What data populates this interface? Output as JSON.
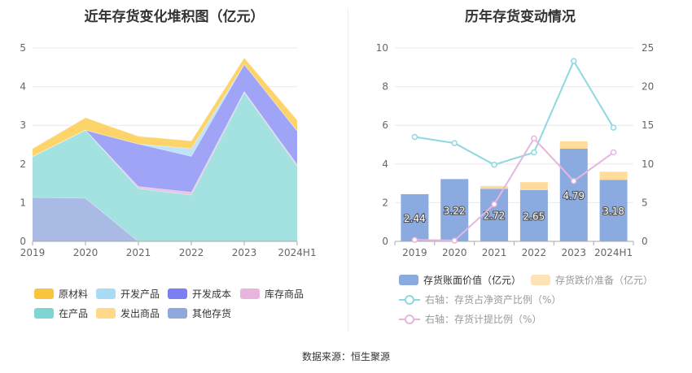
{
  "titles": {
    "left": "近年存货变化堆积图（亿元）",
    "right": "历年存货变动情况"
  },
  "source": "数据来源：恒生聚源",
  "left_legend": [
    {
      "label": "原材料",
      "color": "#f9c440"
    },
    {
      "label": "开发产品",
      "color": "#a8dcf5"
    },
    {
      "label": "开发成本",
      "color": "#7b7ff2"
    },
    {
      "label": "库存商品",
      "color": "#e9b5de"
    },
    {
      "label": "在产品",
      "color": "#7ed6d3"
    },
    {
      "label": "发出商品",
      "color": "#ffd98a"
    },
    {
      "label": "其他存货",
      "color": "#8fa9de"
    }
  ],
  "right_legend": [
    {
      "label": "存货账面价值（亿元）",
      "color": "#8aaae0",
      "kind": "box"
    },
    {
      "label": "存货跌价准备（亿元）",
      "color": "#ffe3b8",
      "kind": "box"
    },
    {
      "label": "右轴：存货占净资产比例（%）",
      "color": "#8fd8e0",
      "kind": "line"
    },
    {
      "label": "右轴：存货计提比例（%）",
      "color": "#e6b6dd",
      "kind": "line"
    }
  ],
  "chart_data": [
    {
      "type": "area",
      "title": "近年存货变化堆积图（亿元）",
      "categories": [
        "2019",
        "2020",
        "2021",
        "2022",
        "2023",
        "2024H1"
      ],
      "ylim": [
        0,
        5
      ],
      "yticks": [
        0,
        1,
        2,
        3,
        4,
        5
      ],
      "stacked": true,
      "series": [
        {
          "name": "其他存货",
          "color": "#a9bbe4",
          "values": [
            1.14,
            1.12,
            0.0,
            0.0,
            0.0,
            0.0
          ]
        },
        {
          "name": "在产品",
          "color": "#a4e2e2",
          "values": [
            1.06,
            1.76,
            1.37,
            1.2,
            3.85,
            1.95
          ]
        },
        {
          "name": "库存商品",
          "color": "#ecc2e2",
          "values": [
            0.0,
            0.0,
            0.05,
            0.07,
            0.03,
            0.04
          ]
        },
        {
          "name": "开发成本",
          "color": "#9fa4f7",
          "values": [
            0.0,
            0.0,
            1.1,
            0.93,
            0.7,
            0.87
          ]
        },
        {
          "name": "开发产品",
          "color": "#bfe4f8",
          "values": [
            0.0,
            0.0,
            0.0,
            0.2,
            0.0,
            0.0
          ]
        },
        {
          "name": "原材料",
          "color": "#fcd46a",
          "values": [
            0.2,
            0.32,
            0.2,
            0.2,
            0.17,
            0.28
          ]
        }
      ]
    },
    {
      "type": "bar",
      "title": "历年存货变动情况",
      "categories": [
        "2019",
        "2020",
        "2021",
        "2022",
        "2023",
        "2024H1"
      ],
      "ylim": [
        0,
        10
      ],
      "yticks": [
        0,
        2,
        4,
        6,
        8,
        10
      ],
      "y2lim": [
        0,
        25
      ],
      "y2ticks": [
        0,
        5,
        10,
        15,
        20,
        25
      ],
      "series": [
        {
          "name": "存货账面价值（亿元）",
          "type": "bar",
          "color": "#8aaae0",
          "values": [
            2.44,
            3.22,
            2.72,
            2.65,
            4.79,
            3.18
          ],
          "labels": [
            "2.44",
            "3.22",
            "2.72",
            "2.65",
            "4.79",
            "3.18"
          ]
        },
        {
          "name": "存货跌价准备（亿元）",
          "type": "bar",
          "stacked": true,
          "color": "#ffdc99",
          "values": [
            0.0,
            0.0,
            0.14,
            0.41,
            0.38,
            0.42
          ]
        },
        {
          "name": "右轴：存货占净资产比例（%）",
          "type": "line",
          "axis": "right",
          "color": "#8fd8e0",
          "values": [
            13.5,
            12.7,
            9.9,
            11.5,
            23.3,
            14.7
          ]
        },
        {
          "name": "右轴：存货计提比例（%）",
          "type": "line",
          "axis": "right",
          "color": "#e6b6dd",
          "values": [
            0.2,
            0.1,
            4.8,
            13.3,
            7.8,
            11.5
          ]
        }
      ]
    }
  ]
}
